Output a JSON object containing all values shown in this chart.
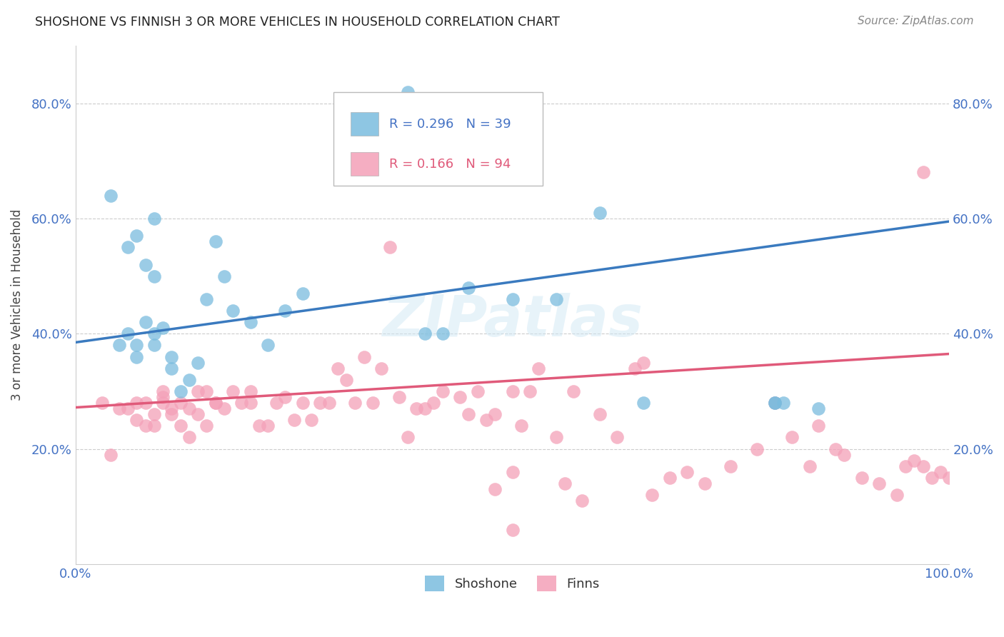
{
  "title": "SHOSHONE VS FINNISH 3 OR MORE VEHICLES IN HOUSEHOLD CORRELATION CHART",
  "source": "Source: ZipAtlas.com",
  "ylabel": "3 or more Vehicles in Household",
  "shoshone_color": "#7abcde",
  "finns_color": "#f4a0b8",
  "line_blue": "#3a7abf",
  "line_pink": "#e05a7a",
  "shoshone_x": [
    0.38,
    0.04,
    0.06,
    0.07,
    0.08,
    0.09,
    0.09,
    0.05,
    0.06,
    0.07,
    0.07,
    0.08,
    0.09,
    0.09,
    0.1,
    0.11,
    0.11,
    0.12,
    0.13,
    0.14,
    0.15,
    0.16,
    0.17,
    0.18,
    0.2,
    0.22,
    0.24,
    0.26,
    0.4,
    0.42,
    0.45,
    0.5,
    0.55,
    0.6,
    0.65,
    0.8,
    0.85,
    0.8,
    0.81
  ],
  "shoshone_y": [
    0.82,
    0.64,
    0.55,
    0.57,
    0.52,
    0.5,
    0.6,
    0.38,
    0.4,
    0.36,
    0.38,
    0.42,
    0.4,
    0.38,
    0.41,
    0.36,
    0.34,
    0.3,
    0.32,
    0.35,
    0.46,
    0.56,
    0.5,
    0.44,
    0.42,
    0.38,
    0.44,
    0.47,
    0.4,
    0.4,
    0.48,
    0.46,
    0.46,
    0.61,
    0.28,
    0.28,
    0.27,
    0.28,
    0.28
  ],
  "finns_x": [
    0.03,
    0.04,
    0.05,
    0.06,
    0.07,
    0.07,
    0.08,
    0.08,
    0.09,
    0.09,
    0.1,
    0.1,
    0.1,
    0.11,
    0.11,
    0.12,
    0.12,
    0.13,
    0.13,
    0.14,
    0.14,
    0.15,
    0.15,
    0.16,
    0.16,
    0.17,
    0.18,
    0.19,
    0.2,
    0.2,
    0.21,
    0.22,
    0.23,
    0.24,
    0.25,
    0.26,
    0.27,
    0.28,
    0.29,
    0.3,
    0.31,
    0.32,
    0.33,
    0.34,
    0.35,
    0.36,
    0.37,
    0.38,
    0.39,
    0.4,
    0.41,
    0.42,
    0.44,
    0.45,
    0.46,
    0.47,
    0.48,
    0.5,
    0.51,
    0.52,
    0.53,
    0.55,
    0.56,
    0.57,
    0.58,
    0.6,
    0.62,
    0.64,
    0.65,
    0.66,
    0.68,
    0.7,
    0.72,
    0.75,
    0.78,
    0.8,
    0.82,
    0.84,
    0.85,
    0.87,
    0.88,
    0.9,
    0.92,
    0.94,
    0.95,
    0.96,
    0.97,
    0.98,
    0.99,
    1.0,
    0.5,
    0.48,
    0.5,
    0.97
  ],
  "finns_y": [
    0.28,
    0.19,
    0.27,
    0.27,
    0.25,
    0.28,
    0.24,
    0.28,
    0.26,
    0.24,
    0.3,
    0.29,
    0.28,
    0.27,
    0.26,
    0.24,
    0.28,
    0.27,
    0.22,
    0.26,
    0.3,
    0.3,
    0.24,
    0.28,
    0.28,
    0.27,
    0.3,
    0.28,
    0.3,
    0.28,
    0.24,
    0.24,
    0.28,
    0.29,
    0.25,
    0.28,
    0.25,
    0.28,
    0.28,
    0.34,
    0.32,
    0.28,
    0.36,
    0.28,
    0.34,
    0.55,
    0.29,
    0.22,
    0.27,
    0.27,
    0.28,
    0.3,
    0.29,
    0.26,
    0.3,
    0.25,
    0.26,
    0.3,
    0.24,
    0.3,
    0.34,
    0.22,
    0.14,
    0.3,
    0.11,
    0.26,
    0.22,
    0.34,
    0.35,
    0.12,
    0.15,
    0.16,
    0.14,
    0.17,
    0.2,
    0.28,
    0.22,
    0.17,
    0.24,
    0.2,
    0.19,
    0.15,
    0.14,
    0.12,
    0.17,
    0.18,
    0.17,
    0.15,
    0.16,
    0.15,
    0.06,
    0.13,
    0.16,
    0.68
  ],
  "blue_line_x0": 0.0,
  "blue_line_y0": 0.385,
  "blue_line_x1": 1.0,
  "blue_line_y1": 0.595,
  "pink_line_x0": 0.0,
  "pink_line_y0": 0.272,
  "pink_line_x1": 1.0,
  "pink_line_y1": 0.365,
  "xlim": [
    0.0,
    1.0
  ],
  "ylim": [
    0.0,
    0.9
  ],
  "yticks": [
    0.2,
    0.4,
    0.6,
    0.8
  ],
  "ytick_labels": [
    "20.0%",
    "40.0%",
    "60.0%",
    "80.0%"
  ],
  "xtick_labels": [
    "0.0%",
    "100.0%"
  ],
  "tick_color": "#4472c4",
  "grid_color": "#cccccc",
  "title_color": "#222222",
  "source_color": "#888888",
  "ylabel_color": "#444444",
  "legend_blue_text": "R = 0.296   N = 39",
  "legend_pink_text": "R = 0.166   N = 94",
  "legend_blue_color": "#4472c4",
  "legend_pink_color": "#e05a7a",
  "watermark": "ZIPatlas",
  "watermark_color": "#d0e8f5"
}
